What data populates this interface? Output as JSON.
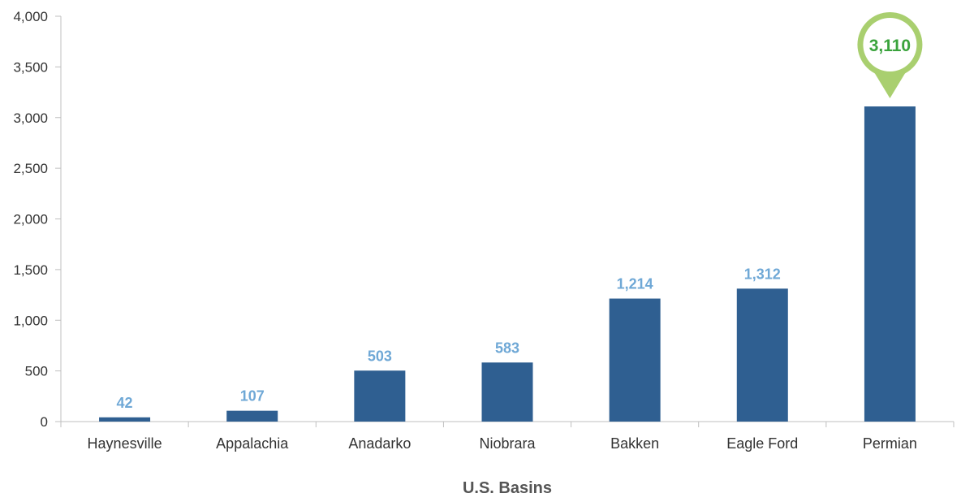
{
  "chart_data": {
    "type": "bar",
    "categories": [
      "Haynesville",
      "Appalachia",
      "Anadarko",
      "Niobrara",
      "Bakken",
      "Eagle Ford",
      "Permian"
    ],
    "values": [
      42,
      107,
      503,
      583,
      1214,
      1312,
      3110
    ],
    "data_labels": [
      "42",
      "107",
      "503",
      "583",
      "1,214",
      "1,312",
      "3,110"
    ],
    "title": "",
    "xlabel": "U.S. Basins",
    "ylabel": "",
    "ylim": [
      0,
      4000
    ],
    "yticks": [
      0,
      500,
      1000,
      1500,
      2000,
      2500,
      3000,
      3500,
      4000
    ],
    "ytick_labels": [
      "0",
      "500",
      "1,000",
      "1,500",
      "2,000",
      "2,500",
      "3,000",
      "3,500",
      "4,000"
    ],
    "highlight": {
      "category": "Permian",
      "label": "3,110",
      "style": "callout-pin"
    },
    "grid": false,
    "legend": "none",
    "colors": {
      "bar": "#2f5f91",
      "data_label": "#6fa8d6",
      "callout_ring": "#a9cf6f",
      "callout_text": "#3aa33c",
      "axis": "#bfbfbf",
      "text": "#333333",
      "xlabel": "#555555"
    }
  }
}
